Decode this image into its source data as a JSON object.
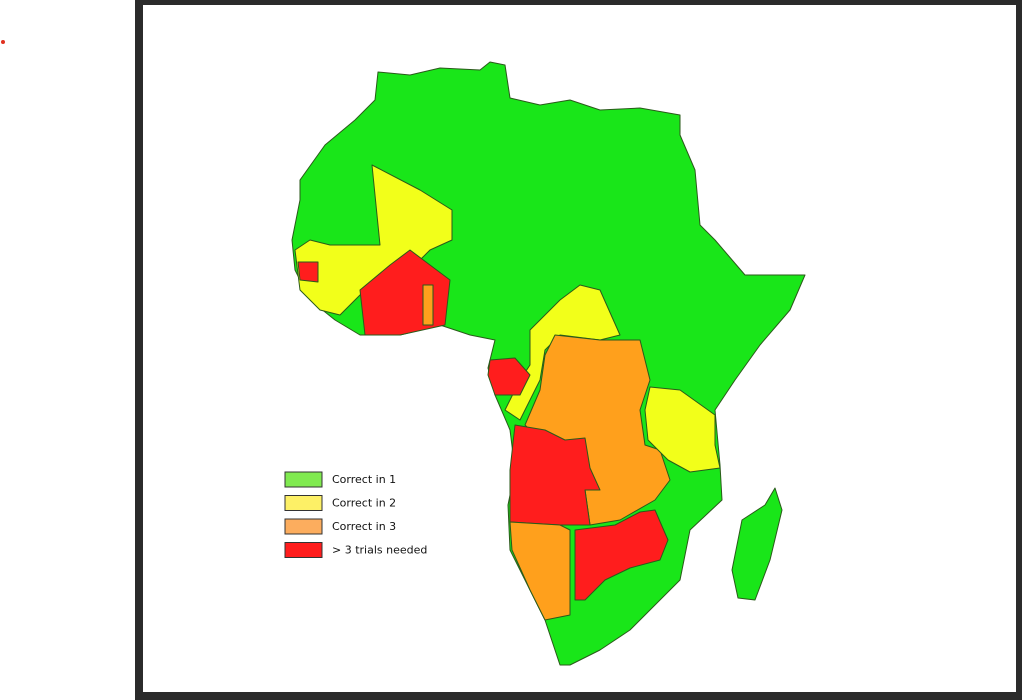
{
  "legend": {
    "items": [
      {
        "label": "Correct in 1",
        "color": "#80ea50"
      },
      {
        "label": "Correct in 2",
        "color": "#fdf066"
      },
      {
        "label": "Correct in 3",
        "color": "#fcad5e"
      },
      {
        "label": "> 3 trials needed",
        "color": "#ff1d1d"
      }
    ]
  }
}
